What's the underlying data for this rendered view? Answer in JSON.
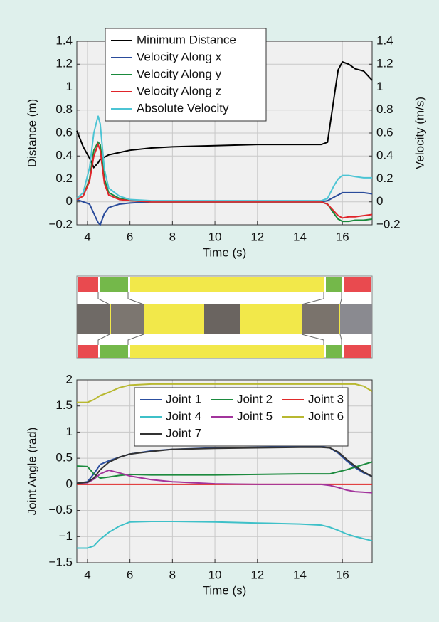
{
  "chart_data": [
    {
      "type": "line",
      "x_label": "Time (s)",
      "y_label": "Distance (m)",
      "y2_label": "Velocity (m/s)",
      "x": [
        3.5,
        3.8,
        4.1,
        4.3,
        4.5,
        4.6,
        4.8,
        5,
        5.5,
        6,
        7,
        8,
        10,
        12,
        14,
        15,
        15.3,
        15.6,
        15.8,
        16,
        16.3,
        16.6,
        17,
        17.4
      ],
      "series": [
        {
          "name": "Minimum Distance",
          "color": "#000000",
          "values": [
            0.62,
            0.48,
            0.38,
            0.3,
            0.34,
            0.37,
            0.39,
            0.41,
            0.43,
            0.45,
            0.47,
            0.48,
            0.49,
            0.5,
            0.5,
            0.5,
            0.52,
            0.9,
            1.15,
            1.22,
            1.2,
            1.16,
            1.14,
            1.06
          ]
        },
        {
          "name": "Velocity Along x",
          "color": "#2a4b9b",
          "axis": "y2",
          "values": [
            0.02,
            0,
            -0.02,
            -0.1,
            -0.18,
            -0.2,
            -0.1,
            -0.05,
            -0.02,
            -0.01,
            0,
            0,
            0,
            0,
            0,
            0,
            0.01,
            0.04,
            0.06,
            0.08,
            0.08,
            0.08,
            0.08,
            0.07
          ]
        },
        {
          "name": "Velocity Along y",
          "color": "#1a8a3c",
          "axis": "y2",
          "values": [
            0.02,
            0.05,
            0.2,
            0.45,
            0.52,
            0.5,
            0.2,
            0.08,
            0.03,
            0.01,
            0,
            0,
            0,
            0,
            0,
            0,
            -0.02,
            -0.1,
            -0.15,
            -0.17,
            -0.17,
            -0.16,
            -0.16,
            -0.15
          ]
        },
        {
          "name": "Velocity Along z",
          "color": "#e0242a",
          "axis": "y2",
          "values": [
            0.02,
            0.05,
            0.18,
            0.4,
            0.5,
            0.45,
            0.16,
            0.06,
            0.02,
            0.01,
            0,
            0,
            0,
            0,
            0,
            0,
            -0.02,
            -0.08,
            -0.12,
            -0.14,
            -0.13,
            -0.13,
            -0.12,
            -0.11
          ]
        },
        {
          "name": "Absolute Velocity",
          "color": "#4cc4d4",
          "axis": "y2",
          "values": [
            0.03,
            0.08,
            0.3,
            0.6,
            0.75,
            0.68,
            0.28,
            0.12,
            0.05,
            0.02,
            0.01,
            0.01,
            0.01,
            0.01,
            0.01,
            0.01,
            0.03,
            0.14,
            0.2,
            0.23,
            0.23,
            0.22,
            0.21,
            0.21
          ]
        }
      ],
      "xlim": [
        3.5,
        17.4
      ],
      "xticks": [
        4,
        6,
        8,
        10,
        12,
        14,
        16
      ],
      "ylim": [
        -0.2,
        1.4
      ],
      "yticks": [
        {
          "value": -0.2,
          "label": "−0.2"
        },
        0,
        0.2,
        0.4,
        0.6,
        0.8,
        1,
        1.2,
        1.4
      ],
      "y2lim": [
        -0.2,
        1.4
      ],
      "y2ticks": [
        {
          "value": -0.2,
          "label": "−0.2"
        },
        0,
        0.2,
        0.4,
        0.6,
        0.8,
        1,
        1.2,
        1.4
      ],
      "grid": true,
      "legend": "upper left"
    },
    {
      "type": "line",
      "x_label": "Time (s)",
      "y_label": "Joint Angle (rad)",
      "x": [
        3.5,
        4,
        4.3,
        4.6,
        5,
        5.5,
        6,
        7,
        8,
        10,
        12,
        14,
        15,
        15.4,
        15.8,
        16.2,
        16.6,
        17,
        17.4
      ],
      "series": [
        {
          "name": "Joint 1",
          "color": "#2c4fa0",
          "values": [
            0.02,
            0.05,
            0.2,
            0.38,
            0.45,
            0.52,
            0.58,
            0.64,
            0.67,
            0.7,
            0.71,
            0.72,
            0.72,
            0.7,
            0.6,
            0.45,
            0.32,
            0.22,
            0.15
          ]
        },
        {
          "name": "Joint 2",
          "color": "#1c8a3e",
          "values": [
            0.35,
            0.34,
            0.2,
            0.12,
            0.14,
            0.17,
            0.19,
            0.18,
            0.18,
            0.18,
            0.19,
            0.2,
            0.2,
            0.2,
            0.24,
            0.28,
            0.33,
            0.38,
            0.43
          ]
        },
        {
          "name": "Joint 3",
          "color": "#e02a2a",
          "values": [
            0,
            0,
            0,
            0,
            0,
            0,
            0,
            0,
            0,
            0,
            0,
            0,
            0,
            0,
            0,
            0,
            0,
            0,
            0
          ]
        },
        {
          "name": "Joint 4",
          "color": "#3ec0c8",
          "values": [
            -1.22,
            -1.22,
            -1.18,
            -1.05,
            -0.92,
            -0.8,
            -0.72,
            -0.71,
            -0.71,
            -0.72,
            -0.74,
            -0.76,
            -0.78,
            -0.82,
            -0.88,
            -0.95,
            -1,
            -1.04,
            -1.08
          ]
        },
        {
          "name": "Joint 5",
          "color": "#a2349c",
          "values": [
            0.02,
            0.03,
            0.1,
            0.2,
            0.27,
            0.22,
            0.16,
            0.09,
            0.05,
            0.01,
            0,
            0,
            0,
            -0.02,
            -0.06,
            -0.11,
            -0.14,
            -0.15,
            -0.16
          ]
        },
        {
          "name": "Joint 6",
          "color": "#b8b830",
          "values": [
            1.57,
            1.57,
            1.62,
            1.7,
            1.76,
            1.85,
            1.9,
            1.92,
            1.92,
            1.92,
            1.92,
            1.92,
            1.92,
            1.92,
            1.92,
            1.92,
            1.92,
            1.88,
            1.78
          ]
        },
        {
          "name": "Joint 7",
          "color": "#333333",
          "values": [
            0.02,
            0.04,
            0.12,
            0.28,
            0.42,
            0.52,
            0.58,
            0.63,
            0.67,
            0.69,
            0.7,
            0.71,
            0.71,
            0.7,
            0.62,
            0.48,
            0.35,
            0.24,
            0.15
          ]
        }
      ],
      "xlim": [
        3.5,
        17.4
      ],
      "xticks": [
        4,
        6,
        8,
        10,
        12,
        14,
        16
      ],
      "ylim": [
        -1.5,
        2
      ],
      "yticks": [
        {
          "value": -1.5,
          "label": "−1.5"
        },
        {
          "value": -1,
          "label": "−1"
        },
        {
          "value": -0.5,
          "label": "−0.5"
        },
        0,
        0.5,
        1,
        1.5,
        2
      ],
      "grid": true,
      "legend": "upper right"
    }
  ]
}
